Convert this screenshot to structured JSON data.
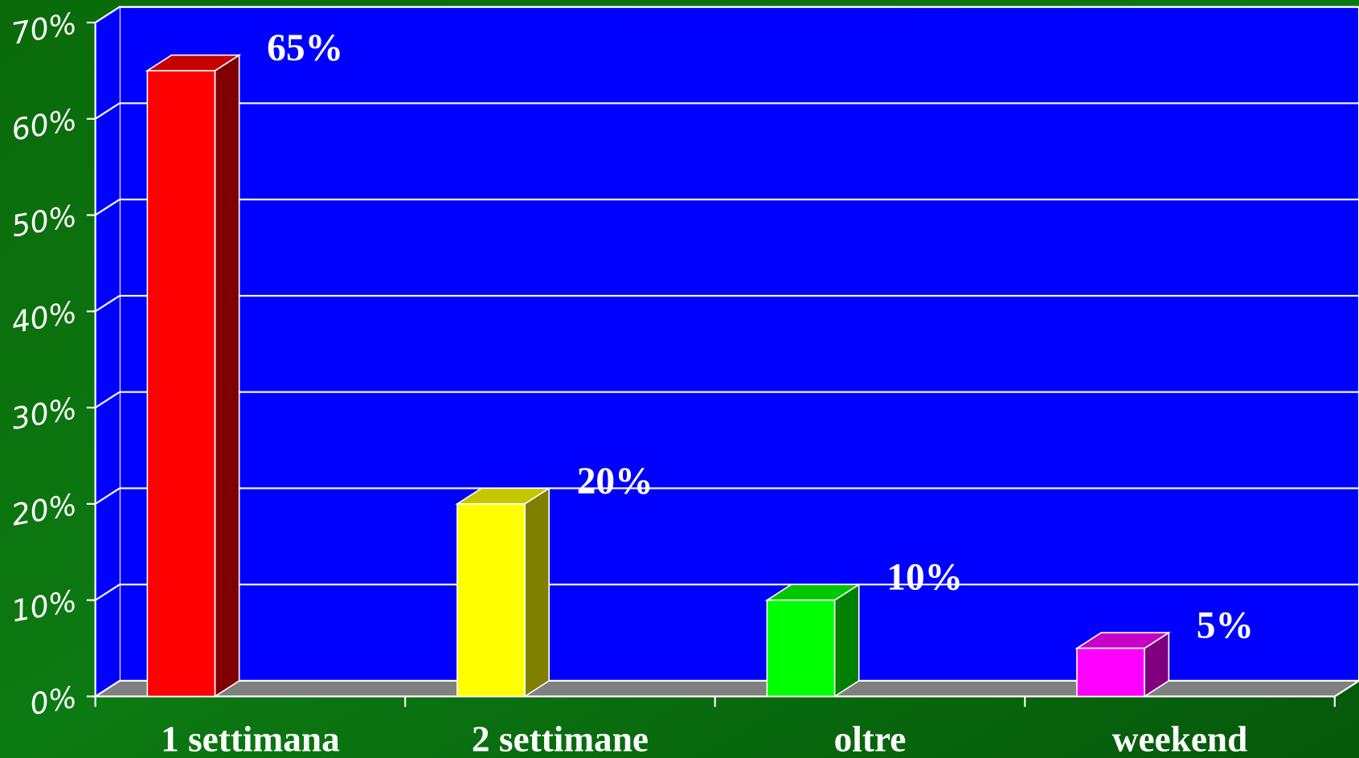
{
  "chart_data": {
    "type": "bar3d",
    "categories": [
      "1 settimana",
      "2 settimane",
      "oltre",
      "weekend"
    ],
    "values": [
      65,
      20,
      10,
      5
    ],
    "value_labels": [
      "65%",
      "20%",
      "10%",
      "5%"
    ],
    "colors": [
      "#ff0000",
      "#ffff00",
      "#00ff00",
      "#ff00ff"
    ],
    "ylim": [
      0,
      70
    ],
    "yticks": [
      {
        "value": 0,
        "label": "0%"
      },
      {
        "value": 10,
        "label": "10%"
      },
      {
        "value": 20,
        "label": "20%"
      },
      {
        "value": 30,
        "label": "30%"
      },
      {
        "value": 40,
        "label": "40%"
      },
      {
        "value": 50,
        "label": "50%"
      },
      {
        "value": 60,
        "label": "60%"
      },
      {
        "value": 70,
        "label": "70%"
      }
    ],
    "grid": true
  }
}
